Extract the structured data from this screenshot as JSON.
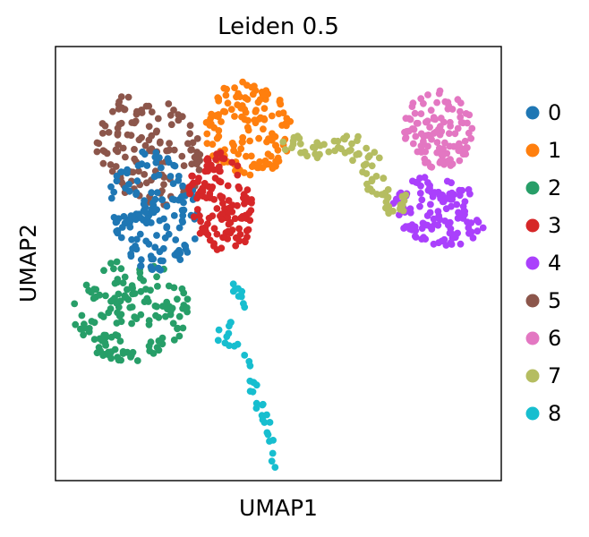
{
  "chart_data": {
    "type": "scatter",
    "title": "Leiden 0.5",
    "xlabel": "UMAP1",
    "ylabel": "UMAP2",
    "xlim": [
      0,
      100
    ],
    "ylim": [
      0,
      100
    ],
    "xticks": false,
    "yticks": false,
    "grid": false,
    "legend_position": "right",
    "legend": [
      {
        "label": "0",
        "color": "#1f77b4"
      },
      {
        "label": "1",
        "color": "#ff7f0e"
      },
      {
        "label": "2",
        "color": "#279e68"
      },
      {
        "label": "3",
        "color": "#d62728"
      },
      {
        "label": "4",
        "color": "#aa40fc"
      },
      {
        "label": "5",
        "color": "#8c564b"
      },
      {
        "label": "6",
        "color": "#e377c2"
      },
      {
        "label": "7",
        "color": "#b5bd61"
      },
      {
        "label": "8",
        "color": "#17becf"
      }
    ],
    "clusters": [
      {
        "label": "5",
        "color": "#8c564b",
        "n": 130,
        "shape": "ellipse",
        "cx": 21,
        "cy": 76,
        "rx": 11,
        "ry": 14,
        "rot": 35
      },
      {
        "label": "1",
        "color": "#ff7f0e",
        "n": 140,
        "shape": "ellipse",
        "cx": 43,
        "cy": 81,
        "rx": 10,
        "ry": 11,
        "rot": 20
      },
      {
        "label": "2",
        "color": "#279e68",
        "n": 150,
        "shape": "ellipse",
        "cx": 17,
        "cy": 39,
        "rx": 13,
        "ry": 12,
        "rot": 0
      },
      {
        "label": "0",
        "color": "#1f77b4",
        "n": 150,
        "shape": "ellipse",
        "cx": 22,
        "cy": 62,
        "rx": 10,
        "ry": 14,
        "rot": 10
      },
      {
        "label": "3",
        "color": "#d62728",
        "n": 130,
        "shape": "ellipse",
        "cx": 37,
        "cy": 64,
        "rx": 7,
        "ry": 12,
        "rot": 10
      },
      {
        "label": "4",
        "color": "#aa40fc",
        "n": 120,
        "shape": "ellipse",
        "cx": 86,
        "cy": 62,
        "rx": 11,
        "ry": 8,
        "rot": -10
      },
      {
        "label": "6",
        "color": "#e377c2",
        "n": 110,
        "shape": "ellipse",
        "cx": 86,
        "cy": 81,
        "rx": 8,
        "ry": 9,
        "rot": 0
      },
      {
        "label": "7",
        "color": "#b5bd61",
        "n": 80,
        "shape": "path",
        "points": [
          [
            52,
            78
          ],
          [
            59,
            76
          ],
          [
            66,
            78
          ],
          [
            70,
            74
          ],
          [
            72,
            68
          ],
          [
            76,
            63
          ],
          [
            78,
            65
          ]
        ],
        "spread": 2.2
      },
      {
        "label": "8",
        "color": "#17becf",
        "n": 45,
        "shape": "path",
        "points": [
          [
            40,
            46
          ],
          [
            42,
            40
          ],
          [
            37,
            33
          ],
          [
            43,
            29
          ],
          [
            45,
            19
          ],
          [
            48,
            12
          ],
          [
            49,
            4
          ]
        ],
        "spread": 1.1
      }
    ]
  }
}
